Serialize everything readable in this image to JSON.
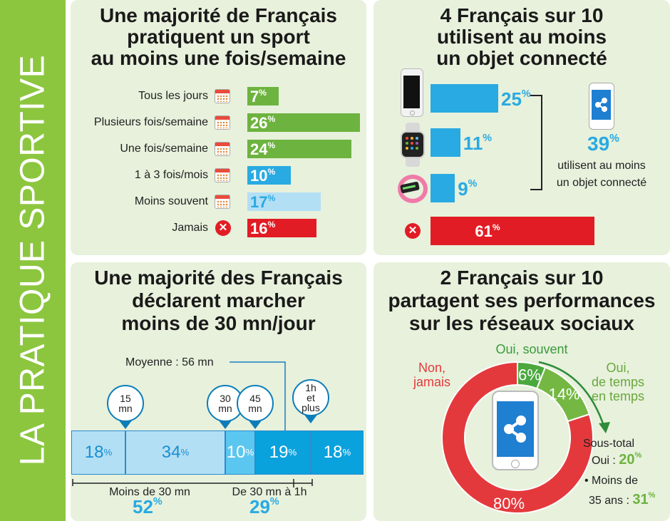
{
  "sidebar": {
    "title": "LA PRATIQUE SPORTIVE"
  },
  "panel1": {
    "title": [
      "Une majorité de Français",
      "pratiquent un sport",
      "au moins une fois/semaine"
    ],
    "rows": [
      {
        "label": "Tous les jours",
        "value": "7",
        "icon": "calendar-icon",
        "color": "#6db33f"
      },
      {
        "label": "Plusieurs fois/semaine",
        "value": "26",
        "icon": "calendar-icon",
        "color": "#6db33f"
      },
      {
        "label": "Une fois/semaine",
        "value": "24",
        "icon": "calendar-icon",
        "color": "#6db33f"
      },
      {
        "label": "1 à 3 fois/mois",
        "value": "10",
        "icon": "calendar-icon",
        "color": "#29aae2"
      },
      {
        "label": "Moins souvent",
        "value": "17",
        "icon": "calendar-icon",
        "color": "#b3dff5"
      },
      {
        "label": "Jamais",
        "value": "16",
        "icon": "x-icon",
        "color": "#e21c24"
      }
    ]
  },
  "panel2": {
    "title": [
      "4 Français sur 10",
      "utilisent au moins",
      "un objet connecté"
    ],
    "rows": [
      {
        "value": "25",
        "icon": "smartphone-icon"
      },
      {
        "value": "11",
        "icon": "smartwatch-icon"
      },
      {
        "value": "9",
        "icon": "fitness-band-icon"
      }
    ],
    "total_value": "39",
    "total_caption": [
      "utilisent au moins",
      "un objet connecté"
    ],
    "none_value": "61",
    "colors": {
      "blue": "#29aae2",
      "red": "#e21c24"
    }
  },
  "panel3": {
    "title": [
      "Une majorité des Français",
      "déclarent marcher",
      "moins de 30 mn/jour"
    ],
    "average_label": "Moyenne : 56 mn",
    "pins": [
      [
        "15",
        "mn"
      ],
      [
        "30",
        "mn"
      ],
      [
        "45",
        "mn"
      ],
      [
        "1h",
        "et",
        "plus"
      ]
    ],
    "segments": [
      {
        "value": "18"
      },
      {
        "value": "34"
      },
      {
        "value": "10"
      },
      {
        "value": "19"
      },
      {
        "value": "18"
      }
    ],
    "group1": {
      "label": "Moins de 30 mn",
      "value": "52"
    },
    "group2": {
      "label": "De 30 mn à 1h",
      "value": "29"
    }
  },
  "panel4": {
    "title": [
      "2 Français sur 10",
      "partagent ses performances",
      "sur les réseaux sociaux"
    ],
    "labels": {
      "never": [
        "Non,",
        "jamais"
      ],
      "often": "Oui, souvent",
      "sometimes": [
        "Oui,",
        "de temps",
        "en temps"
      ]
    },
    "slices": {
      "often": "6",
      "sometimes": "14",
      "never": "80"
    },
    "subtotal": {
      "label1": "Sous-total",
      "label2": "Oui :",
      "value": "20",
      "bullet_label1": "• Moins de",
      "bullet_label2": "35 ans :",
      "bullet_value": "31"
    },
    "colors": {
      "red": "#e4393c",
      "green": "#4aa83d",
      "light_green": "#74b843"
    }
  },
  "pct_sign": "%",
  "chart_data": [
    {
      "type": "bar",
      "title": "Une majorité de Français pratiquent un sport au moins une fois/semaine",
      "categories": [
        "Tous les jours",
        "Plusieurs fois/semaine",
        "Une fois/semaine",
        "1 à 3 fois/mois",
        "Moins souvent",
        "Jamais"
      ],
      "values": [
        7,
        26,
        24,
        10,
        17,
        16
      ]
    },
    {
      "type": "bar",
      "title": "4 Français sur 10 utilisent au moins un objet connecté",
      "categories": [
        "smartphone",
        "montre connectée",
        "bracelet connecté",
        "aucun"
      ],
      "values": [
        25,
        11,
        9,
        61
      ],
      "total": 39
    },
    {
      "type": "bar",
      "title": "Une majorité des Français déclarent marcher moins de 30 mn/jour",
      "categories": [
        "<15 mn",
        "15-30 mn",
        "30-45 mn",
        "45 mn-1h",
        "1h et plus"
      ],
      "values": [
        18,
        34,
        10,
        19,
        18
      ],
      "groups": [
        {
          "label": "Moins de 30 mn",
          "value": 52
        },
        {
          "label": "De 30 mn à 1h",
          "value": 29
        }
      ],
      "average": "56 mn"
    },
    {
      "type": "pie",
      "title": "2 Français sur 10 partagent ses performances sur les réseaux sociaux",
      "categories": [
        "Oui, souvent",
        "Oui, de temps en temps",
        "Non, jamais"
      ],
      "values": [
        6,
        14,
        80
      ]
    }
  ]
}
